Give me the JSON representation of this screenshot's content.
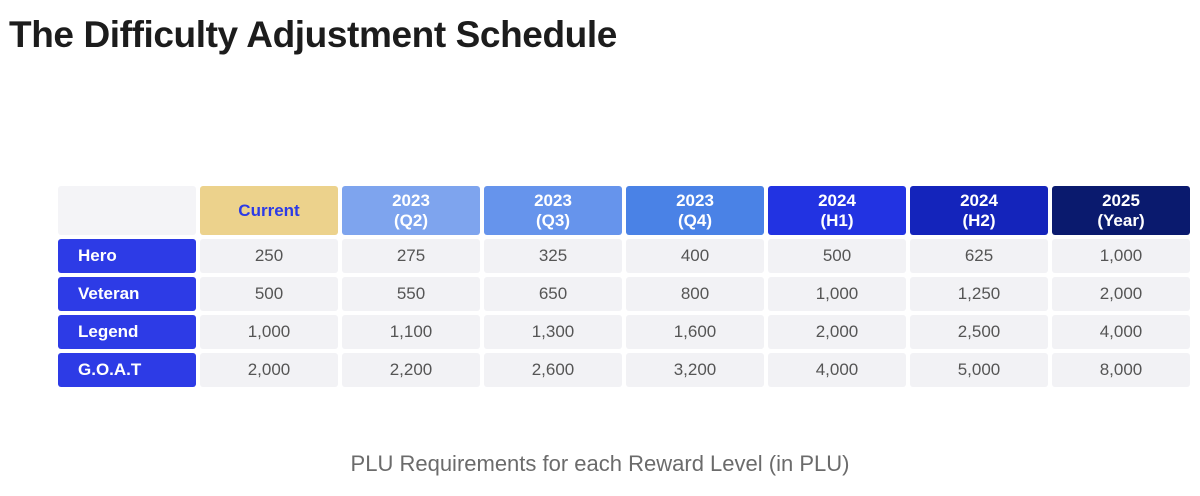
{
  "title": "The Difficulty Adjustment Schedule",
  "caption": "PLU Requirements for each Reward Level (in PLU)",
  "table": {
    "columns": [
      {
        "line1": "Current",
        "line2": "",
        "bg": "#ecd28c",
        "fg": "#2d3be6"
      },
      {
        "line1": "2023",
        "line2": "(Q2)",
        "bg": "#7ea4ee",
        "fg": "#ffffff"
      },
      {
        "line1": "2023",
        "line2": "(Q3)",
        "bg": "#6694ec",
        "fg": "#ffffff"
      },
      {
        "line1": "2023",
        "line2": "(Q4)",
        "bg": "#4a82e6",
        "fg": "#ffffff"
      },
      {
        "line1": "2024",
        "line2": "(H1)",
        "bg": "#2233e2",
        "fg": "#ffffff"
      },
      {
        "line1": "2024",
        "line2": "(H2)",
        "bg": "#1424bb",
        "fg": "#ffffff"
      },
      {
        "line1": "2025",
        "line2": "(Year)",
        "bg": "#0a1a6e",
        "fg": "#ffffff"
      }
    ],
    "rows": [
      {
        "label": "Hero",
        "values": [
          "250",
          "275",
          "325",
          "400",
          "500",
          "625",
          "1,000"
        ]
      },
      {
        "label": "Veteran",
        "values": [
          "500",
          "550",
          "650",
          "800",
          "1,000",
          "1,250",
          "2,000"
        ]
      },
      {
        "label": "Legend",
        "values": [
          "1,000",
          "1,100",
          "1,300",
          "1,600",
          "2,000",
          "2,500",
          "4,000"
        ]
      },
      {
        "label": "G.O.A.T",
        "values": [
          "2,000",
          "2,200",
          "2,600",
          "3,200",
          "4,000",
          "5,000",
          "8,000"
        ]
      }
    ]
  }
}
